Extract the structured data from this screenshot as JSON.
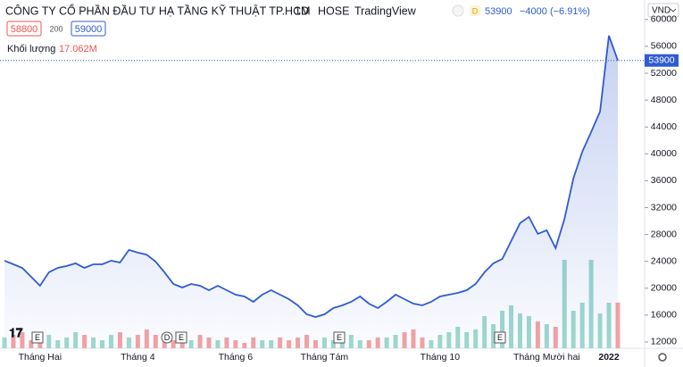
{
  "header": {
    "title": "CÔNG TY CỔ PHẦN ĐẦU TƯ HẠ TẦNG KỸ THUẬT TP.HCM",
    "interval": "1D",
    "exchange": "HOSE",
    "source": "TradingView",
    "badge": "D",
    "change": "−4000 (−6.91%)",
    "sell": "58800",
    "spread": "200",
    "buy": "59000",
    "volume_title": "Khối lượng",
    "volume_value": "17.062M",
    "currency": "VND"
  },
  "chart_data": {
    "type": "area",
    "categories": [
      null,
      null,
      null,
      null,
      "Tháng Hai",
      null,
      null,
      null,
      null,
      null,
      null,
      null,
      null,
      null,
      null,
      "Tháng 4",
      null,
      null,
      null,
      null,
      null,
      null,
      null,
      null,
      null,
      null,
      "Tháng 6",
      null,
      null,
      null,
      null,
      null,
      null,
      null,
      null,
      null,
      "Tháng Tám",
      null,
      null,
      null,
      null,
      null,
      null,
      null,
      null,
      null,
      null,
      null,
      null,
      "Tháng 10",
      null,
      null,
      null,
      null,
      null,
      null,
      null,
      null,
      null,
      null,
      null,
      "Tháng Mười hai",
      null,
      null,
      null,
      null,
      null,
      null,
      "2022",
      null
    ],
    "values": [
      24100,
      23560,
      23030,
      21700,
      20370,
      22370,
      23030,
      23300,
      23700,
      23030,
      23560,
      23560,
      24100,
      23830,
      25700,
      25300,
      25000,
      23960,
      22370,
      20640,
      20100,
      20640,
      20370,
      19700,
      20370,
      19700,
      19040,
      18780,
      17980,
      19040,
      19700,
      19040,
      18380,
      17450,
      16120,
      15720,
      16120,
      17050,
      17450,
      17980,
      18780,
      17710,
      17050,
      17980,
      19040,
      18380,
      17710,
      17450,
      17980,
      18780,
      19040,
      19310,
      19700,
      20640,
      22370,
      23700,
      24360,
      27020,
      29680,
      30610,
      28090,
      28620,
      25960,
      30340,
      36330,
      40320,
      43240,
      46300,
      57600,
      53900
    ],
    "color": "#2f5bd1",
    "volume_values": [
      4,
      5,
      6,
      3,
      4,
      5,
      3,
      4,
      6,
      5,
      4,
      3,
      5,
      6,
      4,
      5,
      7,
      5,
      4,
      3,
      4,
      3,
      5,
      4,
      3,
      4,
      3,
      2,
      4,
      3,
      3,
      4,
      3,
      4,
      5,
      3,
      4,
      3,
      4,
      5,
      3,
      3,
      4,
      4,
      5,
      6,
      7,
      4,
      3,
      5,
      6,
      8,
      6,
      7,
      12,
      9,
      14,
      16,
      13,
      12,
      10,
      9,
      8,
      33,
      14,
      17,
      33,
      13,
      17,
      17.062
    ],
    "volume_colors": {
      "up": "#9fd9cf",
      "down": "#f2a4a4"
    },
    "event_markers": [
      "E",
      "D",
      "E",
      "E",
      "E"
    ],
    "ylim": [
      10400,
      62900
    ],
    "yticks": [
      12000,
      16000,
      20000,
      24000,
      28000,
      32000,
      36000,
      40000,
      44000,
      48000,
      52000,
      56000,
      60000
    ],
    "last_price_line": true
  }
}
